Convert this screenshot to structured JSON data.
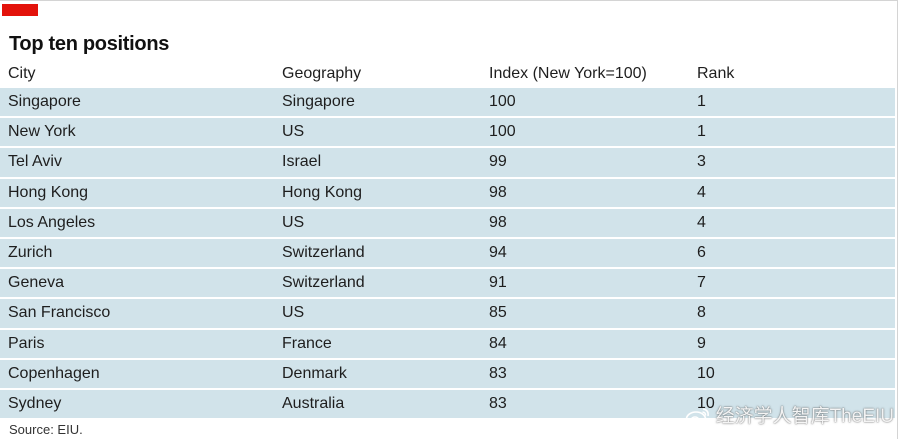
{
  "title": "Top ten positions",
  "source": "Source: EIU.",
  "watermark": "经济学人智库TheEIU",
  "colors": {
    "accent_tag": "#e3120b",
    "band": "#d1e3ea"
  },
  "chart_data": {
    "type": "table",
    "title": "Top ten positions",
    "columns": [
      "City",
      "Geography",
      "Index (New York=100)",
      "Rank"
    ],
    "rows": [
      [
        "Singapore",
        "Singapore",
        "100",
        "1"
      ],
      [
        "New York",
        "US",
        "100",
        "1"
      ],
      [
        "Tel Aviv",
        "Israel",
        "99",
        "3"
      ],
      [
        "Hong Kong",
        "Hong Kong",
        "98",
        "4"
      ],
      [
        "Los Angeles",
        "US",
        "98",
        "4"
      ],
      [
        "Zurich",
        "Switzerland",
        "94",
        "6"
      ],
      [
        "Geneva",
        "Switzerland",
        "91",
        "7"
      ],
      [
        "San Francisco",
        "US",
        "85",
        "8"
      ],
      [
        "Paris",
        "France",
        "84",
        "9"
      ],
      [
        "Copenhagen",
        "Denmark",
        "83",
        "10"
      ],
      [
        "Sydney",
        "Australia",
        "83",
        "10"
      ]
    ]
  }
}
